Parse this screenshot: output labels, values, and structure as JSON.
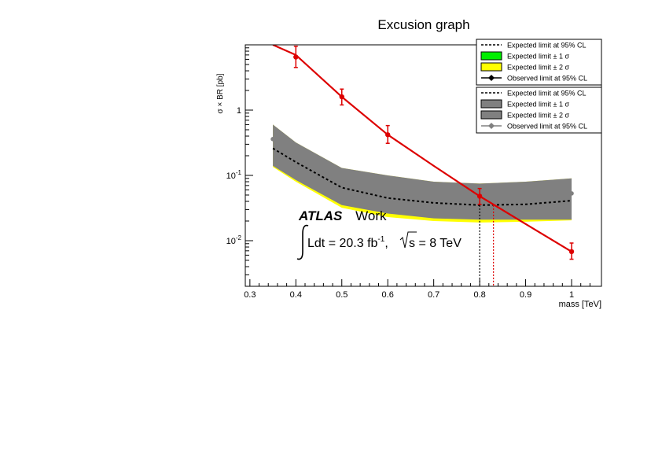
{
  "chart_data": {
    "type": "line",
    "title": "Excusion graph",
    "xlabel": "mass [TeV]",
    "ylabel": "σ × BR [pb]",
    "xlim": [
      0.29,
      1.065
    ],
    "ylim": [
      0.002,
      10
    ],
    "yscale": "log",
    "x_ticks": [
      "0.3",
      "0.4",
      "0.5",
      "0.6",
      "0.7",
      "0.8",
      "0.9",
      "1"
    ],
    "y_ticks": [
      {
        "value": 1,
        "label": "1"
      },
      {
        "value": 0.1,
        "label": "10",
        "exp": "-1"
      },
      {
        "value": 0.01,
        "label": "10",
        "exp": "-2"
      }
    ],
    "grid": false,
    "legend_position": "top-right",
    "legend_groups": [
      [
        "Expected limit at 95% CL",
        "Expected limit ± 1 σ",
        "Expected limit ± 2 σ",
        "Observed limit at 95% CL"
      ],
      [
        "Expected limit at 95% CL",
        "Expected limit ± 1 σ",
        "Expected limit ± 2 σ",
        "Observed limit at 95% CL"
      ]
    ],
    "colors": {
      "signal": "#dd0000",
      "expected": "#000000",
      "band_1sigma": "#00ee00",
      "band_2sigma": "#ffff00",
      "band_grey": "#808080",
      "observed_grey": "#808080",
      "observed_black": "#000000"
    },
    "signal_curve": {
      "x": [
        0.35,
        0.4,
        0.5,
        0.6,
        0.7,
        0.8,
        0.9,
        1.0
      ],
      "y": [
        15,
        7.0,
        1.6,
        0.42,
        0.14,
        0.048,
        0.018,
        0.0068
      ]
    },
    "signal_points": {
      "x": [
        0.4,
        0.5,
        0.6,
        0.8,
        1.0
      ],
      "y": [
        6.5,
        1.6,
        0.42,
        0.048,
        0.0068
      ],
      "y_err_up": [
        9.5,
        2.1,
        0.58,
        0.063,
        0.0092
      ],
      "y_err_down": [
        4.5,
        1.2,
        0.31,
        0.036,
        0.0052
      ]
    },
    "expected_limit": {
      "x": [
        0.35,
        0.4,
        0.5,
        0.6,
        0.7,
        0.8,
        0.9,
        1.0
      ],
      "y": [
        0.26,
        0.16,
        0.065,
        0.045,
        0.038,
        0.035,
        0.036,
        0.041
      ]
    },
    "band_upper": {
      "x": [
        0.35,
        0.4,
        0.5,
        0.6,
        0.7,
        0.8,
        0.9,
        1.0
      ],
      "y": [
        0.6,
        0.32,
        0.13,
        0.1,
        0.08,
        0.075,
        0.08,
        0.09
      ]
    },
    "band_lower": {
      "x": [
        0.35,
        0.4,
        0.5,
        0.6,
        0.7,
        0.8,
        0.9,
        1.0
      ],
      "y": [
        0.14,
        0.085,
        0.035,
        0.026,
        0.022,
        0.021,
        0.021,
        0.021
      ]
    },
    "band_2sigma_lower": {
      "x": [
        0.35,
        0.4,
        0.5,
        0.6,
        0.7,
        0.8,
        0.9,
        1.0
      ],
      "y": [
        0.135,
        0.08,
        0.032,
        0.023,
        0.02,
        0.019,
        0.0195,
        0.0205
      ]
    },
    "observed_grey_points": {
      "x": [
        0.35,
        1.0
      ],
      "y": [
        0.36,
        0.053
      ]
    },
    "crossing_lines": [
      {
        "x": 0.8,
        "y_top": 0.035,
        "color": "#000000"
      },
      {
        "x": 0.83,
        "y_top": 0.035,
        "color": "#dd0000"
      }
    ],
    "annotations": {
      "experiment": "ATLAS",
      "status": "Work",
      "lumi_prefix": "Ldt = 20.3 fb",
      "lumi_exp": "-1",
      "lumi_sep": ", ",
      "energy_suffix": "s = 8 TeV"
    }
  }
}
